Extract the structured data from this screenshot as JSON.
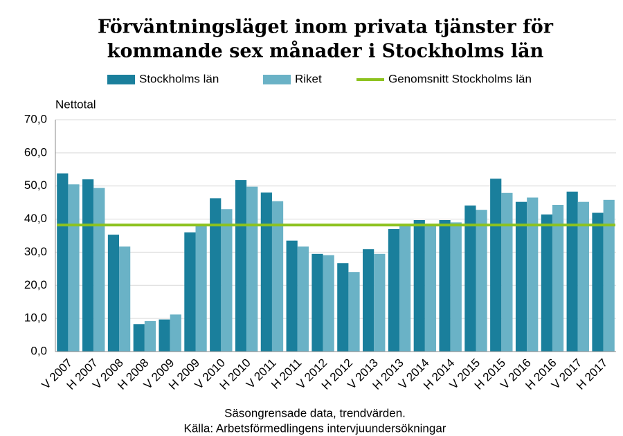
{
  "chart_data": {
    "type": "bar",
    "title": [
      "Förväntningsläget inom privata tjänster för",
      "kommande sex månader i Stockholms län"
    ],
    "y_label": "Nettotal",
    "footnotes": [
      "Säsongrensade data, trendvärden.",
      "Källa: Arbetsförmedlingens intervjuundersökningar"
    ],
    "categories": [
      "V 2007",
      "H 2007",
      "V 2008",
      "H 2008",
      "V 2009",
      "H 2009",
      "V 2010",
      "H 2010",
      "V 2011",
      "H 2011",
      "V 2012",
      "H 2012",
      "V 2013",
      "H 2013",
      "V 2014",
      "H 2014",
      "V 2015",
      "H 2015",
      "V 2016",
      "H 2016",
      "V 2017",
      "H 2017"
    ],
    "series": [
      {
        "name": "Stockholms län",
        "color": "#1a7f9c",
        "values": [
          53.8,
          52.0,
          35.3,
          8.3,
          9.7,
          36.0,
          46.3,
          51.8,
          48.0,
          33.5,
          29.5,
          26.7,
          30.9,
          37.0,
          39.7,
          39.7,
          44.1,
          52.2,
          45.2,
          41.4,
          48.3,
          41.9
        ]
      },
      {
        "name": "Riket",
        "color": "#6ab2c6",
        "values": [
          50.5,
          49.4,
          31.7,
          9.2,
          11.2,
          38.0,
          43.0,
          49.8,
          45.4,
          31.7,
          29.1,
          24.0,
          29.5,
          38.5,
          38.4,
          39.0,
          42.8,
          47.9,
          46.5,
          44.3,
          45.2,
          45.8
        ]
      },
      {
        "name": "Genomsnitt Stockholms län",
        "color": "#8dc21f",
        "type": "line",
        "values": [
          38.2,
          38.2,
          38.2,
          38.2,
          38.2,
          38.2,
          38.2,
          38.2,
          38.2,
          38.2,
          38.2,
          38.2,
          38.2,
          38.2,
          38.2,
          38.2,
          38.2,
          38.2,
          38.2,
          38.2,
          38.2,
          38.2
        ]
      }
    ],
    "ylim": [
      0,
      70
    ],
    "yticks": [
      {
        "value": 0,
        "label": "0,0"
      },
      {
        "value": 10,
        "label": "10,0"
      },
      {
        "value": 20,
        "label": "20,0"
      },
      {
        "value": 30,
        "label": "30,0"
      },
      {
        "value": 40,
        "label": "40,0"
      },
      {
        "value": 50,
        "label": "50,0"
      },
      {
        "value": 60,
        "label": "60,0"
      },
      {
        "value": 70,
        "label": "70,0"
      }
    ],
    "grid": true,
    "legend": "top"
  }
}
